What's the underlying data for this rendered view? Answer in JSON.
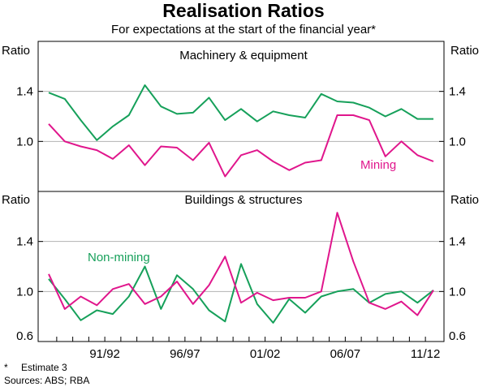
{
  "chart_data": [
    {
      "type": "line",
      "panel_title": "Machinery & equipment",
      "ylabel": "Ratio",
      "ylim": [
        0.6,
        1.8
      ],
      "yticks": [
        "1.4",
        "1.0"
      ],
      "ytick_values": [
        1.4,
        1.0
      ],
      "series": [
        {
          "name": "Non-mining",
          "color": "#16a05a",
          "values": [
            1.39,
            1.34,
            1.17,
            1.01,
            1.12,
            1.21,
            1.45,
            1.28,
            1.22,
            1.23,
            1.35,
            1.17,
            1.26,
            1.16,
            1.24,
            1.21,
            1.19,
            1.38,
            1.32,
            1.31,
            1.27,
            1.2,
            1.26,
            1.18,
            1.18
          ]
        },
        {
          "name": "Mining",
          "color": "#e0168c",
          "values": [
            1.14,
            1.0,
            0.96,
            0.93,
            0.86,
            0.97,
            0.81,
            0.96,
            0.95,
            0.85,
            0.99,
            0.72,
            0.89,
            0.93,
            0.84,
            0.77,
            0.83,
            0.85,
            1.21,
            1.21,
            1.17,
            0.88,
            1.0,
            0.89,
            0.84
          ]
        }
      ]
    },
    {
      "type": "line",
      "panel_title": "Buildings & structures",
      "ylabel": "Ratio",
      "ylim": [
        0.6,
        1.8
      ],
      "yticks": [
        "1.4",
        "1.0",
        "0.6"
      ],
      "ytick_values": [
        1.4,
        1.0,
        0.6
      ],
      "series": [
        {
          "name": "Non-mining",
          "color": "#16a05a",
          "values": [
            1.1,
            0.94,
            0.77,
            0.85,
            0.82,
            0.96,
            1.2,
            0.86,
            1.13,
            1.02,
            0.85,
            0.76,
            1.22,
            0.9,
            0.75,
            0.94,
            0.83,
            0.96,
            1.0,
            1.02,
            0.91,
            0.98,
            1.0,
            0.91,
            1.01
          ]
        },
        {
          "name": "Mining",
          "color": "#e0168c",
          "values": [
            1.14,
            0.86,
            0.96,
            0.89,
            1.02,
            1.06,
            0.9,
            0.96,
            1.08,
            0.9,
            1.05,
            1.28,
            0.91,
            0.99,
            0.93,
            0.95,
            0.95,
            1.0,
            1.63,
            1.24,
            0.91,
            0.86,
            0.92,
            0.81,
            1.01
          ]
        }
      ]
    }
  ],
  "title": "Realisation Ratios",
  "subtitle": "For expectations at the start of the financial year*",
  "x_tick_labels": [
    "91/92",
    "96/97",
    "01/02",
    "06/07",
    "11/12"
  ],
  "x_tick_label_index": [
    3.5,
    8.5,
    13.5,
    18.5,
    23.5
  ],
  "x_minor_ticks": [
    0.5,
    1.5,
    2.5,
    3.5,
    4.5,
    5.5,
    6.5,
    7.5,
    8.5,
    9.5,
    10.5,
    11.5,
    12.5,
    13.5,
    14.5,
    15.5,
    16.5,
    17.5,
    18.5,
    19.5,
    20.5,
    21.5,
    22.5,
    23.5
  ],
  "annotations": {
    "mining_label": "Mining",
    "non_mining_label": "Non-mining"
  },
  "footnote": {
    "marker": "*",
    "text": "Estimate 3",
    "sources": "Sources: ABS; RBA"
  }
}
